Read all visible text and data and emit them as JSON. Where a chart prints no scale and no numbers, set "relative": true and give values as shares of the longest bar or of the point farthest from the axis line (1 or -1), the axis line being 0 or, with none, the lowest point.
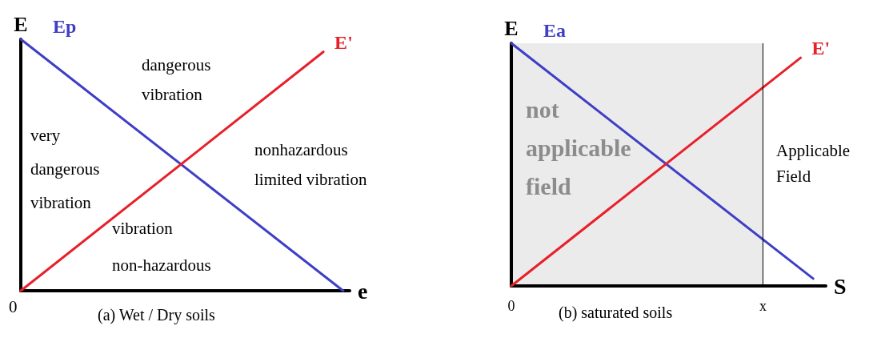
{
  "chart_data": [
    {
      "type": "line",
      "title": "(a) Wet / Dry soils",
      "ylabel": "E",
      "xlabel": "e",
      "relative": true,
      "legend": false,
      "grid": false,
      "marker": "none",
      "categories": [
        null,
        null,
        null,
        null,
        null,
        null,
        null,
        null,
        null,
        null,
        null,
        null,
        null,
        null,
        null,
        null,
        null,
        null,
        null,
        null,
        null,
        null,
        null,
        null,
        null,
        null,
        null,
        null,
        null,
        null,
        null,
        null,
        null,
        null,
        null,
        null,
        null,
        null,
        null,
        null,
        null,
        null,
        null,
        null,
        null,
        null,
        null,
        null,
        null,
        null,
        null
      ],
      "series": [
        {
          "name": "Ep",
          "color": "#3f3fc6",
          "values": [
            1,
            null,
            null,
            null,
            null,
            null,
            null,
            null,
            null,
            null,
            null,
            null,
            null,
            null,
            null,
            null,
            null,
            null,
            null,
            null,
            null,
            null,
            null,
            null,
            null,
            null,
            null,
            null,
            null,
            null,
            null,
            null,
            null,
            null,
            null,
            null,
            null,
            null,
            null,
            null,
            null,
            null,
            null,
            null,
            null,
            null,
            null,
            null,
            null,
            0,
            null
          ]
        },
        {
          "name": "E'",
          "color": "#e8202a",
          "values": [
            0,
            null,
            null,
            null,
            null,
            null,
            null,
            null,
            null,
            null,
            null,
            null,
            null,
            null,
            null,
            null,
            null,
            null,
            null,
            null,
            null,
            null,
            null,
            null,
            null,
            null,
            null,
            null,
            null,
            null,
            null,
            null,
            null,
            null,
            null,
            null,
            null,
            null,
            null,
            null,
            null,
            null,
            null,
            null,
            null,
            null,
            0.95,
            null,
            null,
            null,
            null
          ]
        }
      ],
      "annotations": [
        "dangerous vibration",
        "very dangerous vibration",
        "nonhazardous limited vibration",
        "vibration non-hazardous",
        "0"
      ]
    },
    {
      "type": "line",
      "title": "(b) saturated soils",
      "ylabel": "E",
      "xlabel": "S",
      "relative": true,
      "legend": false,
      "grid": false,
      "marker": "none",
      "categories": [
        "0",
        null,
        null,
        null,
        null,
        null,
        null,
        null,
        null,
        null,
        null,
        null,
        null,
        null,
        null,
        null,
        null,
        null,
        null,
        null,
        null,
        null,
        null,
        null,
        null,
        null,
        null,
        null,
        null,
        null,
        null,
        null,
        null,
        null,
        null,
        null,
        null,
        null,
        null,
        null,
        "x",
        null,
        null,
        null,
        null,
        null,
        null,
        null,
        null,
        null,
        null
      ],
      "series": [
        {
          "name": "Ea",
          "color": "#3f3fc6",
          "values": [
            1,
            null,
            null,
            null,
            null,
            null,
            null,
            null,
            null,
            null,
            null,
            null,
            null,
            null,
            null,
            null,
            null,
            null,
            null,
            null,
            null,
            null,
            null,
            null,
            null,
            null,
            null,
            null,
            null,
            null,
            null,
            null,
            null,
            null,
            null,
            null,
            null,
            null,
            null,
            null,
            null,
            null,
            null,
            null,
            null,
            null,
            null,
            null,
            0.03,
            null,
            null
          ]
        },
        {
          "name": "E'",
          "color": "#e8202a",
          "values": [
            0,
            null,
            null,
            null,
            null,
            null,
            null,
            null,
            null,
            null,
            null,
            null,
            null,
            null,
            null,
            null,
            null,
            null,
            null,
            null,
            null,
            null,
            null,
            null,
            null,
            null,
            null,
            null,
            null,
            null,
            null,
            null,
            null,
            null,
            null,
            null,
            null,
            null,
            null,
            null,
            null,
            null,
            null,
            null,
            null,
            null,
            0.94,
            null,
            null,
            null,
            null
          ]
        }
      ],
      "ref_lines": [
        {
          "axis": "x",
          "value": "x",
          "color": "#000000"
        }
      ],
      "bands": [
        {
          "axis": "x",
          "from": "0",
          "to": "x",
          "label": "not applicable field",
          "color": "#000000"
        }
      ],
      "annotations": [
        "Applicable Field"
      ]
    }
  ]
}
